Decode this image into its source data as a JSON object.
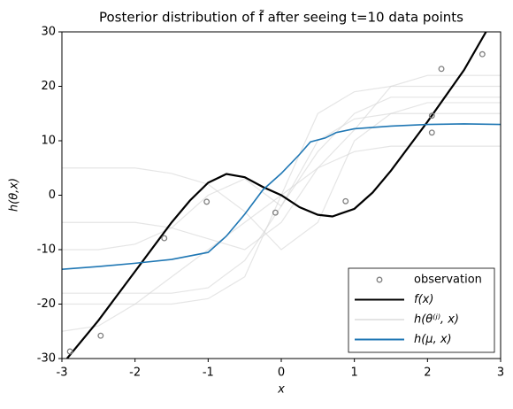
{
  "chart_data": {
    "type": "line",
    "title": "Posterior distribution of f̃ after seeing t=10 data points",
    "x_label": "x",
    "y_label": "h(θ,x)",
    "xlim": [
      -3,
      3
    ],
    "ylim": [
      -30,
      30
    ],
    "xticks": [
      -3,
      -2,
      -1,
      0,
      1,
      2,
      3
    ],
    "yticks": [
      -30,
      -20,
      -10,
      0,
      10,
      20,
      30
    ],
    "legend": "lower right",
    "series": [
      {
        "name": "observation",
        "kind": "scatter",
        "color": "#808080",
        "x": [
          -2.89,
          -2.47,
          -1.6,
          -1.02,
          -0.08,
          0.88,
          2.06,
          2.06,
          2.19,
          2.75
        ],
        "values": [
          -28.7,
          -25.8,
          -7.9,
          -1.2,
          -3.2,
          -1.1,
          14.6,
          11.5,
          23.2,
          25.9
        ]
      },
      {
        "name": "f(x)",
        "kind": "line",
        "color": "#000000",
        "x": [
          -2.93,
          -2.5,
          -2,
          -1.5,
          -1.25,
          -1,
          -0.75,
          -0.5,
          -0.25,
          0,
          0.25,
          0.5,
          0.7,
          1,
          1.25,
          1.5,
          2,
          2.5,
          2.8
        ],
        "values": [
          -30,
          -23,
          -14,
          -5,
          -1,
          2.3,
          3.9,
          3.3,
          1.5,
          0,
          -2.2,
          -3.6,
          -3.9,
          -2.5,
          0.5,
          4.5,
          13.5,
          23,
          30
        ]
      },
      {
        "name": "h(θ⁽ʲ⁾, x)",
        "kind": "samples",
        "color": "#d3d3d3",
        "x": [
          -3,
          -2.5,
          -2,
          -1.5,
          -1,
          -0.5,
          0,
          0.5,
          1,
          1.5,
          2,
          2.5,
          3
        ],
        "samples": [
          [
            -18,
            -18,
            -18,
            -18,
            -17,
            -12,
            -2,
            8,
            15,
            18,
            18,
            18,
            18
          ],
          [
            -5,
            -5,
            -5,
            -6,
            -8,
            -10,
            -5,
            5,
            12,
            20,
            22,
            22,
            22
          ],
          [
            -25,
            -24,
            -20,
            -15,
            -10,
            -5,
            0,
            5,
            8,
            9,
            9,
            9,
            9
          ],
          [
            5,
            5,
            5,
            4,
            2,
            -3,
            -10,
            -5,
            10,
            15,
            17,
            17,
            17
          ],
          [
            -20,
            -20,
            -20,
            -20,
            -19,
            -15,
            0,
            15,
            19,
            20,
            20,
            20,
            20
          ],
          [
            -10,
            -10,
            -9,
            -6,
            0,
            3,
            -2,
            10,
            14,
            15,
            15,
            15,
            15
          ]
        ]
      },
      {
        "name": "h(μ, x)",
        "kind": "line",
        "color": "#1f77b4",
        "x": [
          -3,
          -2.5,
          -2,
          -1.5,
          -1,
          -0.75,
          -0.5,
          -0.25,
          0,
          0.25,
          0.4,
          0.6,
          0.75,
          1,
          1.5,
          2,
          2.5,
          3
        ],
        "values": [
          -13.6,
          -13.1,
          -12.5,
          -11.8,
          -10.5,
          -7.5,
          -3.5,
          1,
          4,
          7.5,
          9.8,
          10.5,
          11.5,
          12.2,
          12.7,
          13,
          13.1,
          13
        ]
      }
    ]
  }
}
